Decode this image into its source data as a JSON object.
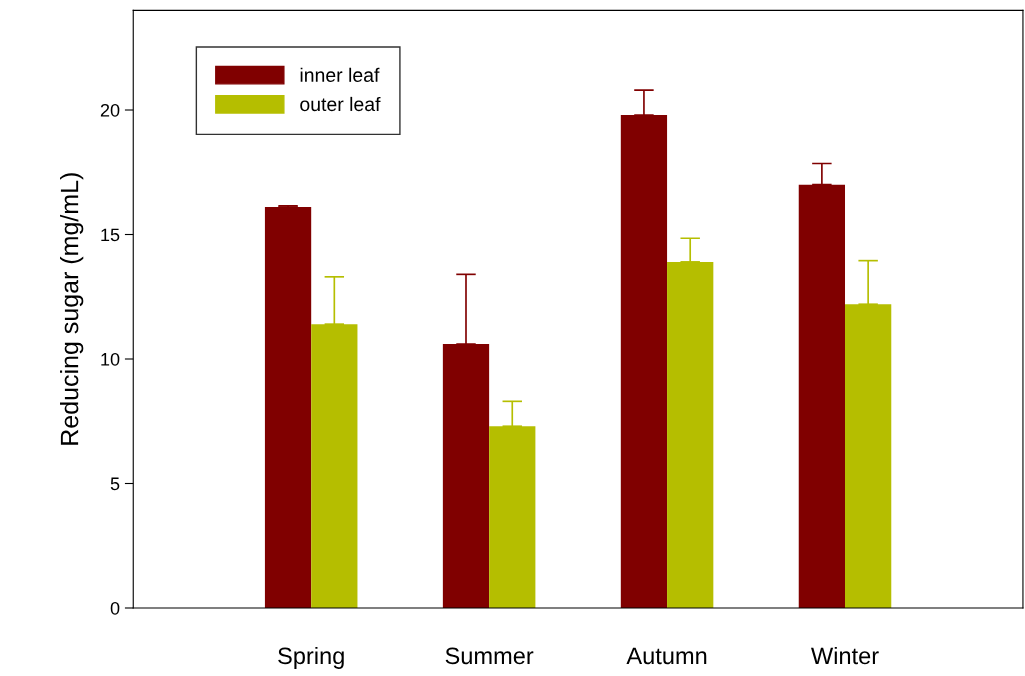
{
  "chart_data": {
    "type": "bar",
    "ylabel": "Reducing sugar (mg/mL)",
    "categories": [
      "Spring",
      "Summer",
      "Autumn",
      "Winter"
    ],
    "series": [
      {
        "name": "inner leaf",
        "color": "#800000",
        "values": [
          16.1,
          10.6,
          19.8,
          17.0
        ],
        "errors": [
          [
            16.1,
            16.15
          ],
          [
            10.6,
            13.4
          ],
          [
            19.8,
            20.8
          ],
          [
            17.0,
            17.85
          ]
        ]
      },
      {
        "name": "outer leaf",
        "color": "#b5be00",
        "values": [
          11.4,
          7.3,
          13.9,
          12.2
        ],
        "errors": [
          [
            11.4,
            13.3
          ],
          [
            7.3,
            8.3
          ],
          [
            13.9,
            14.85
          ],
          [
            12.2,
            13.95
          ]
        ]
      }
    ],
    "ylim": [
      0,
      24
    ],
    "yticks": [
      0,
      5,
      10,
      15,
      20
    ],
    "grid": false,
    "legend": "top left"
  }
}
